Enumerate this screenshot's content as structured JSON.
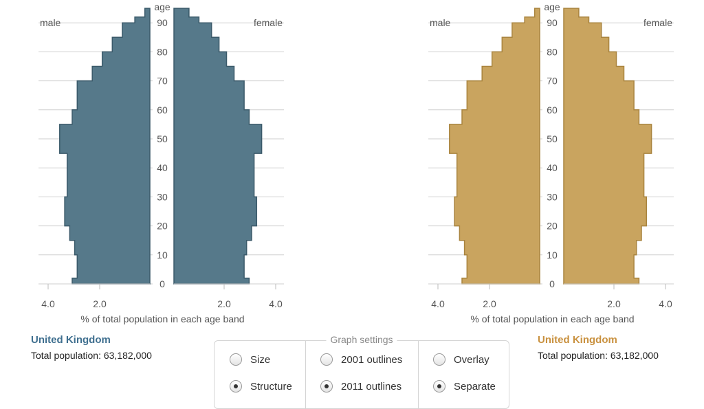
{
  "chart_data": [
    {
      "type": "bar",
      "orientation": "horizontal-population-pyramid",
      "color": "#56798a",
      "edge_color": "#3b5a6a",
      "age_label": "age",
      "male_label": "male",
      "female_label": "female",
      "xlabel": "% of total population in each age band",
      "x_ticks": [
        "4.0",
        "2.0",
        "2.0",
        "4.0"
      ],
      "age_ticks": [
        0,
        10,
        20,
        30,
        40,
        50,
        60,
        70,
        80,
        90
      ],
      "xlim": [
        0,
        4.0
      ],
      "grid": true,
      "bands": [
        "0-2",
        "2-5",
        "5-10",
        "10-15",
        "15-20",
        "20-25",
        "25-30",
        "30-35",
        "35-40",
        "40-45",
        "45-50",
        "50-55",
        "55-60",
        "60-65",
        "65-70",
        "70-75",
        "75-80",
        "80-85",
        "85-90",
        "90-92",
        "92-95"
      ],
      "series": [
        {
          "name": "male",
          "values": [
            3.1,
            2.9,
            2.9,
            3.0,
            3.2,
            3.4,
            3.4,
            3.3,
            3.3,
            3.3,
            3.6,
            3.6,
            3.1,
            2.9,
            2.9,
            2.3,
            1.9,
            1.5,
            1.1,
            0.6,
            0.2
          ]
        },
        {
          "name": "female",
          "values": [
            3.0,
            2.8,
            2.8,
            2.9,
            3.1,
            3.3,
            3.3,
            3.2,
            3.2,
            3.2,
            3.5,
            3.5,
            3.0,
            2.8,
            2.8,
            2.4,
            2.1,
            1.8,
            1.5,
            1.0,
            0.6
          ]
        }
      ]
    },
    {
      "type": "bar",
      "orientation": "horizontal-population-pyramid",
      "color": "#c9a45f",
      "edge_color": "#a9843f",
      "age_label": "age",
      "male_label": "male",
      "female_label": "female",
      "xlabel": "% of total population in each age band",
      "x_ticks": [
        "4.0",
        "2.0",
        "2.0",
        "4.0"
      ],
      "age_ticks": [
        0,
        10,
        20,
        30,
        40,
        50,
        60,
        70,
        80,
        90
      ],
      "xlim": [
        0,
        4.0
      ],
      "grid": true,
      "bands": [
        "0-2",
        "2-5",
        "5-10",
        "10-15",
        "15-20",
        "20-25",
        "25-30",
        "30-35",
        "35-40",
        "40-45",
        "45-50",
        "50-55",
        "55-60",
        "60-65",
        "65-70",
        "70-75",
        "75-80",
        "80-85",
        "85-90",
        "90-92",
        "92-95"
      ],
      "series": [
        {
          "name": "male",
          "values": [
            3.1,
            2.9,
            2.9,
            3.0,
            3.2,
            3.4,
            3.4,
            3.3,
            3.3,
            3.3,
            3.6,
            3.6,
            3.1,
            2.9,
            2.9,
            2.3,
            1.9,
            1.5,
            1.1,
            0.6,
            0.2
          ]
        },
        {
          "name": "female",
          "values": [
            3.0,
            2.8,
            2.8,
            2.9,
            3.1,
            3.3,
            3.3,
            3.2,
            3.2,
            3.2,
            3.5,
            3.5,
            3.0,
            2.8,
            2.8,
            2.4,
            2.1,
            1.8,
            1.5,
            1.0,
            0.6
          ]
        }
      ]
    }
  ],
  "left_panel": {
    "country": "United Kingdom",
    "total_population": "Total population:  63,182,000",
    "color": "#3f6f8f"
  },
  "right_panel": {
    "country": "United Kingdom",
    "total_population": "Total population:  63,182,000",
    "color": "#c9913f"
  },
  "settings": {
    "title": "Graph settings",
    "options": {
      "size": {
        "label": "Size",
        "checked": false
      },
      "structure": {
        "label": "Structure",
        "checked": true
      },
      "outlines_2001": {
        "label": "2001 outlines",
        "checked": false
      },
      "outlines_2011": {
        "label": "2011 outlines",
        "checked": true
      },
      "overlay": {
        "label": "Overlay",
        "checked": false
      },
      "separate": {
        "label": "Separate",
        "checked": true
      }
    }
  }
}
